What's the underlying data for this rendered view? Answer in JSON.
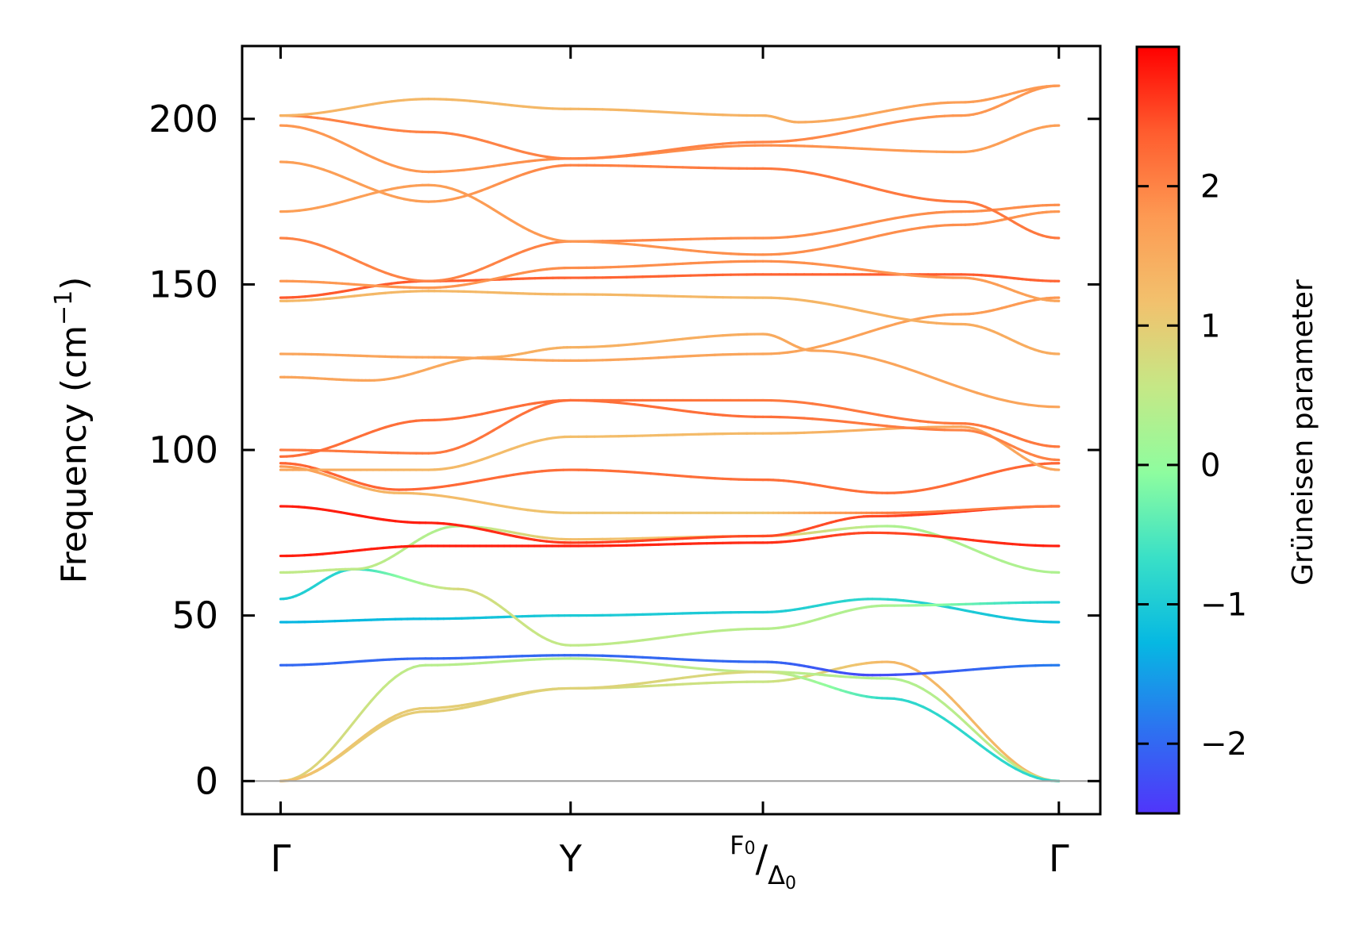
{
  "chart_data": {
    "type": "line",
    "ylabel_main": "Frequency (cm",
    "ylabel_sup": "−1",
    "ylabel_tail": ")",
    "ylim": [
      -10,
      222
    ],
    "xlim": [
      -0.13,
      2.77
    ],
    "yticks": [
      0,
      50,
      100,
      150,
      200
    ],
    "yticklabels": [
      "0",
      "50",
      "100",
      "150",
      "200"
    ],
    "kpoints": [
      {
        "label": "Γ",
        "x": 0
      },
      {
        "label": "Y",
        "x": 0.98
      },
      {
        "label": "F",
        "sub": "0",
        "slash": "/",
        "label2": "Δ",
        "sub2": "0",
        "x": 1.63
      },
      {
        "label": "Γ",
        "x": 2.63
      }
    ],
    "zero_line_color": "#9e9e9e",
    "colorbar": {
      "title": "Grüneisen parameter",
      "range": [
        -2.5,
        3.0
      ],
      "ticks": [
        -2,
        -1,
        0,
        1,
        2
      ],
      "ticklabels": [
        "−2",
        "−1",
        "0",
        "1",
        "2"
      ],
      "colormap": "rainbow",
      "stops": [
        "#5035fb",
        "#2c73f0",
        "#06b8e2",
        "#39e0c7",
        "#8efd9f",
        "#c5e886",
        "#f2c16d",
        "#fd9a53",
        "#ff5c2e",
        "#ff0000"
      ]
    },
    "series": [
      {
        "x": [
          0,
          0.49,
          0.98,
          1.63,
          2.05,
          2.63
        ],
        "y": [
          0,
          21,
          28,
          30,
          36,
          0
        ],
        "g": [
          1.0,
          1.0,
          0.8,
          0.6,
          1.3,
          1.3
        ]
      },
      {
        "x": [
          0,
          0.49,
          0.98,
          1.63,
          2.05,
          2.63
        ],
        "y": [
          0,
          35,
          37,
          33,
          31,
          0
        ],
        "g": [
          1.0,
          0.4,
          0.4,
          0.5,
          0.3,
          0.6
        ]
      },
      {
        "x": [
          0,
          0.49,
          0.98,
          1.63,
          2.05,
          2.63
        ],
        "y": [
          0,
          22,
          28,
          33,
          25,
          0
        ],
        "g": [
          1.2,
          1.0,
          0.9,
          0.8,
          -0.8,
          -0.8
        ]
      },
      {
        "x": [
          0,
          0.49,
          0.98,
          1.63,
          2.0,
          2.63
        ],
        "y": [
          35,
          37,
          38,
          36,
          32,
          35
        ],
        "g": [
          -2.0,
          -2.0,
          -2.0,
          -2.0,
          -2.3,
          -1.8
        ]
      },
      {
        "x": [
          0,
          0.49,
          0.98,
          1.63,
          2.0,
          2.63
        ],
        "y": [
          48,
          49,
          50,
          51,
          55,
          48
        ],
        "g": [
          -1.3,
          -1.2,
          -1.0,
          -1.0,
          -0.8,
          -1.2
        ]
      },
      {
        "x": [
          0,
          0.25,
          0.6,
          0.98,
          1.63,
          2.05,
          2.63
        ],
        "y": [
          55,
          64,
          58,
          41,
          46,
          53,
          54
        ],
        "g": [
          -1.0,
          -0.8,
          0.8,
          0.5,
          0.4,
          0.3,
          -1.0
        ]
      },
      {
        "x": [
          0,
          0.25,
          0.6,
          0.98,
          1.63,
          2.05,
          2.63
        ],
        "y": [
          63,
          64,
          77,
          73,
          74,
          77,
          63
        ],
        "g": [
          0.5,
          0.5,
          0.3,
          1.2,
          1.1,
          0.3,
          0.3
        ]
      },
      {
        "x": [
          0,
          0.49,
          0.98,
          1.63,
          2.0,
          2.63
        ],
        "y": [
          68,
          71,
          71,
          72,
          75,
          71
        ],
        "g": [
          2.8,
          2.8,
          2.8,
          2.7,
          2.5,
          2.8
        ]
      },
      {
        "x": [
          0,
          0.49,
          0.98,
          1.63,
          2.0,
          2.63
        ],
        "y": [
          83,
          78,
          72,
          74,
          80,
          83
        ],
        "g": [
          2.8,
          2.8,
          2.6,
          2.5,
          2.5,
          2.8
        ]
      },
      {
        "x": [
          0,
          0.4,
          0.98,
          1.63,
          2.05,
          2.63
        ],
        "y": [
          95,
          87,
          81,
          81,
          81,
          83
        ],
        "g": [
          1.8,
          1.3,
          1.1,
          1.1,
          2.1,
          2.1
        ]
      },
      {
        "x": [
          0,
          0.4,
          0.98,
          1.63,
          2.05,
          2.63
        ],
        "y": [
          96,
          88,
          94,
          91,
          87,
          96
        ],
        "g": [
          2.3,
          2.3,
          2.2,
          2.2,
          2.2,
          2.3
        ]
      },
      {
        "x": [
          0,
          0.5,
          0.98,
          1.63,
          2.3,
          2.63
        ],
        "y": [
          94,
          94,
          104,
          105,
          107,
          94
        ],
        "g": [
          1.6,
          1.3,
          1.2,
          1.3,
          1.6,
          1.6
        ]
      },
      {
        "x": [
          0,
          0.5,
          0.98,
          1.63,
          2.3,
          2.63
        ],
        "y": [
          100,
          99,
          115,
          110,
          106,
          97
        ],
        "g": [
          2.1,
          2.1,
          2.2,
          2.2,
          2.0,
          2.0
        ]
      },
      {
        "x": [
          0,
          0.5,
          0.98,
          1.63,
          2.3,
          2.63
        ],
        "y": [
          98,
          109,
          115,
          115,
          108,
          101
        ],
        "g": [
          2.2,
          2.2,
          2.2,
          2.1,
          2.1,
          2.1
        ]
      },
      {
        "x": [
          0,
          0.3,
          0.7,
          0.98,
          1.63,
          1.8,
          2.63
        ],
        "y": [
          122,
          121,
          128,
          131,
          135,
          130,
          113
        ],
        "g": [
          1.6,
          1.6,
          1.5,
          1.4,
          1.5,
          1.6,
          1.6
        ]
      },
      {
        "x": [
          0,
          0.5,
          0.98,
          1.63,
          2.3,
          2.63
        ],
        "y": [
          129,
          128,
          127,
          129,
          141,
          146
        ],
        "g": [
          1.6,
          1.6,
          1.6,
          1.6,
          1.7,
          1.8
        ]
      },
      {
        "x": [
          0,
          0.5,
          0.98,
          1.63,
          2.3,
          2.63
        ],
        "y": [
          145,
          148,
          147,
          146,
          138,
          129
        ],
        "g": [
          1.3,
          1.3,
          1.3,
          1.3,
          1.5,
          1.5
        ]
      },
      {
        "x": [
          0,
          0.5,
          0.98,
          1.63,
          2.3,
          2.63
        ],
        "y": [
          146,
          151,
          152,
          153,
          153,
          151
        ],
        "g": [
          2.4,
          2.4,
          2.3,
          2.3,
          2.4,
          2.3
        ]
      },
      {
        "x": [
          0,
          0.5,
          0.98,
          1.63,
          2.3,
          2.63
        ],
        "y": [
          151,
          149,
          155,
          157,
          152,
          145
        ],
        "g": [
          1.8,
          1.8,
          1.9,
          1.9,
          1.8,
          1.6
        ]
      },
      {
        "x": [
          0,
          0.5,
          0.98,
          1.63,
          2.3,
          2.63
        ],
        "y": [
          164,
          151,
          163,
          164,
          172,
          174
        ],
        "g": [
          2.0,
          2.0,
          2.0,
          1.9,
          1.9,
          1.9
        ]
      },
      {
        "x": [
          0,
          0.5,
          0.98,
          1.63,
          2.3,
          2.63
        ],
        "y": [
          172,
          180,
          163,
          159,
          168,
          172
        ],
        "g": [
          1.7,
          1.7,
          1.8,
          1.9,
          1.9,
          1.8
        ]
      },
      {
        "x": [
          0,
          0.5,
          0.98,
          1.63,
          2.3,
          2.63
        ],
        "y": [
          187,
          175,
          186,
          185,
          175,
          164
        ],
        "g": [
          1.7,
          1.7,
          2.0,
          2.1,
          2.1,
          2.1
        ]
      },
      {
        "x": [
          0,
          0.5,
          0.98,
          1.63,
          2.3,
          2.63
        ],
        "y": [
          198,
          184,
          188,
          192,
          190,
          198
        ],
        "g": [
          1.8,
          1.8,
          1.9,
          1.9,
          1.7,
          1.7
        ]
      },
      {
        "x": [
          0,
          0.5,
          0.98,
          1.63,
          2.3,
          2.63
        ],
        "y": [
          201,
          196,
          188,
          193,
          201,
          210
        ],
        "g": [
          2.0,
          2.0,
          2.0,
          2.0,
          1.8,
          1.8
        ]
      },
      {
        "x": [
          0,
          0.5,
          0.98,
          1.63,
          1.75,
          2.3,
          2.63
        ],
        "y": [
          201,
          206,
          203,
          201,
          199,
          205,
          210
        ],
        "g": [
          1.4,
          1.3,
          1.3,
          1.4,
          1.5,
          1.7,
          1.8
        ]
      }
    ]
  }
}
